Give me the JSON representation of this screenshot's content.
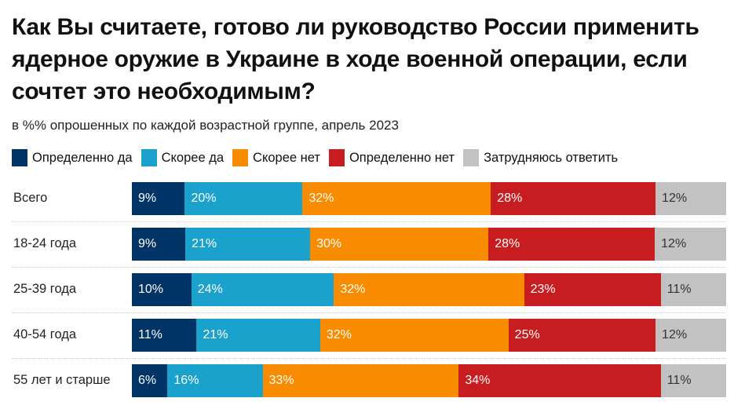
{
  "chart_data": {
    "type": "bar",
    "orientation": "horizontal",
    "stacked": true,
    "title": "Как Вы считаете, готово ли руководство России применить ядерное оружие в Украине в ходе военной операции, если сочтет это необходимым?",
    "subtitle": "в %% опрошенных по каждой возрастной группе, апрель 2023",
    "legend_position": "top",
    "grid": false,
    "categories": [
      "Всего",
      "18-24 года",
      "25-39 года",
      "40-54 года",
      "55 лет и старше"
    ],
    "series": [
      {
        "name": "Определенно да",
        "color": "#003366",
        "label_color": "#ffffff",
        "values": [
          9,
          9,
          10,
          11,
          6
        ]
      },
      {
        "name": "Скорее да",
        "color": "#1aa1cc",
        "label_color": "#ffffff",
        "values": [
          20,
          21,
          24,
          21,
          16
        ]
      },
      {
        "name": "Скорее нет",
        "color": "#f98b00",
        "label_color": "#ffffff",
        "values": [
          32,
          30,
          32,
          32,
          33
        ]
      },
      {
        "name": "Определенно нет",
        "color": "#c81d20",
        "label_color": "#ffffff",
        "values": [
          28,
          28,
          23,
          25,
          34
        ]
      },
      {
        "name": "Затрудняюсь ответить",
        "color": "#c2c2c2",
        "label_color": "#333333",
        "values": [
          12,
          12,
          11,
          12,
          11
        ]
      }
    ]
  }
}
